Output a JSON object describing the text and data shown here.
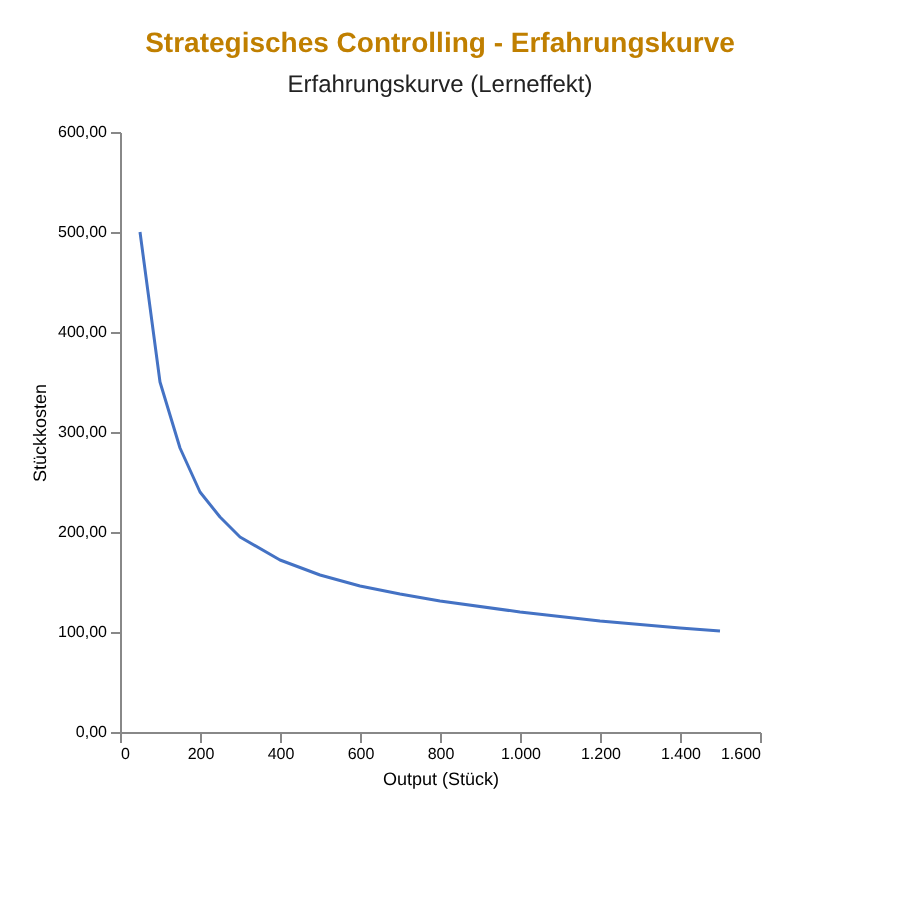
{
  "chart_data": {
    "type": "line",
    "title": "Strategisches Controlling - Erfahrungskurve",
    "subtitle": "Erfahrungskurve (Lerneffekt)",
    "xlabel": "Output (Stück)",
    "ylabel": "Stückkosten",
    "x": [
      50,
      100,
      150,
      200,
      250,
      300,
      400,
      500,
      600,
      700,
      800,
      1000,
      1200,
      1400,
      1500
    ],
    "series": [
      {
        "color": "#4472c4",
        "values": [
          500,
          350,
          284,
          240,
          215,
          195,
          172,
          157,
          146,
          138,
          131,
          120,
          111,
          104,
          101
        ]
      }
    ],
    "xlim": [
      0,
      1600
    ],
    "xticks": [
      0,
      200,
      400,
      600,
      800,
      {
        "value": 1000,
        "label": "1.000"
      },
      {
        "value": 1200,
        "label": "1.200"
      },
      {
        "value": 1400,
        "label": "1.400"
      },
      {
        "value": 1600,
        "label": "1.600"
      }
    ],
    "ylim": [
      0,
      600
    ],
    "yticks": [
      {
        "value": 0,
        "label": "0,00"
      },
      {
        "value": 100,
        "label": "100,00"
      },
      {
        "value": 200,
        "label": "200,00"
      },
      {
        "value": 300,
        "label": "300,00"
      },
      {
        "value": 400,
        "label": "400,00"
      },
      {
        "value": 500,
        "label": "500,00"
      },
      {
        "value": 600,
        "label": "600,00"
      }
    ],
    "grid": false,
    "marker": "none",
    "line_style": "solid"
  }
}
